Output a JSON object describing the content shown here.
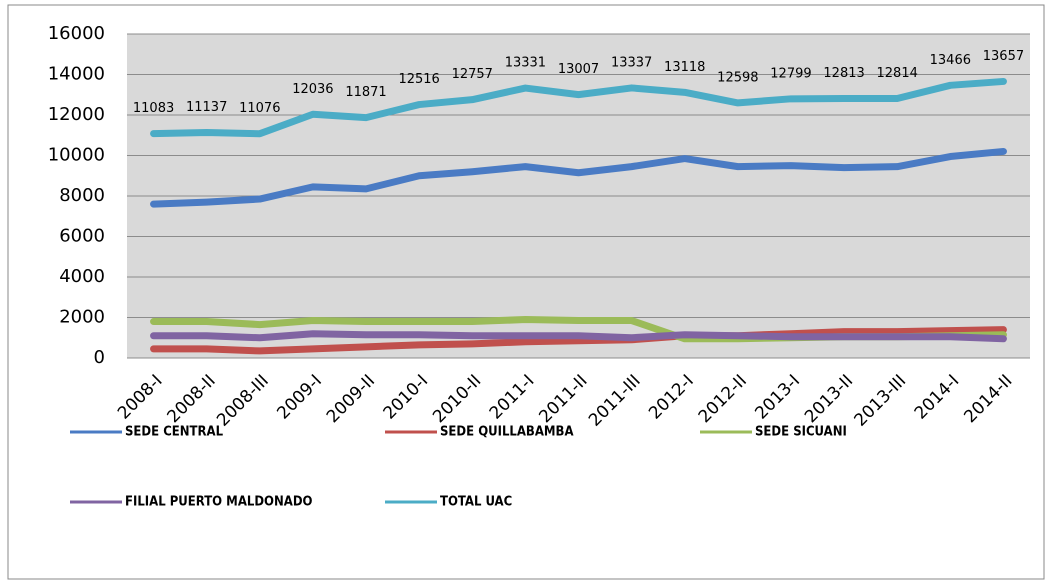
{
  "chart_data": {
    "type": "line",
    "categories": [
      "2008-I",
      "2008-II",
      "2008-III",
      "2009-I",
      "2009-II",
      "2010-I",
      "2010-II",
      "2011-I",
      "2011-II",
      "2011-III",
      "2012-I",
      "2012-II",
      "2013-I",
      "2013-II",
      "2013-III",
      "2014-I",
      "2014-II"
    ],
    "series": [
      {
        "name": "SEDE CENTRAL",
        "color": "#4a7bc4",
        "values": [
          7600,
          7700,
          7850,
          8450,
          8350,
          9000,
          9200,
          9450,
          9150,
          9450,
          9850,
          9450,
          9500,
          9400,
          9450,
          9950,
          10200
        ]
      },
      {
        "name": "SEDE QUILLABAMBA",
        "color": "#c0504d",
        "values": [
          450,
          450,
          350,
          450,
          550,
          650,
          700,
          800,
          850,
          900,
          1100,
          1100,
          1200,
          1300,
          1300,
          1350,
          1400
        ]
      },
      {
        "name": "SEDE SICUANI",
        "color": "#9bbb59",
        "values": [
          1800,
          1800,
          1650,
          1850,
          1800,
          1800,
          1800,
          1900,
          1850,
          1850,
          950,
          950,
          1000,
          1050,
          1050,
          1100,
          1150
        ]
      },
      {
        "name": "FILIAL PUERTO MALDONADO",
        "color": "#8064a2",
        "values": [
          1100,
          1100,
          1000,
          1200,
          1150,
          1150,
          1100,
          1100,
          1100,
          1000,
          1150,
          1100,
          1050,
          1050,
          1050,
          1050,
          950
        ]
      },
      {
        "name": "TOTAL UAC",
        "color": "#4bacc6",
        "values": [
          11083,
          11137,
          11076,
          12036,
          11871,
          12516,
          12757,
          13331,
          13007,
          13337,
          13118,
          12598,
          12799,
          12813,
          12814,
          13466,
          13657
        ],
        "data_labels": true
      }
    ],
    "ylim": [
      0,
      16000
    ],
    "yticks": [
      0,
      2000,
      4000,
      6000,
      8000,
      10000,
      12000,
      14000,
      16000
    ],
    "grid": true
  }
}
